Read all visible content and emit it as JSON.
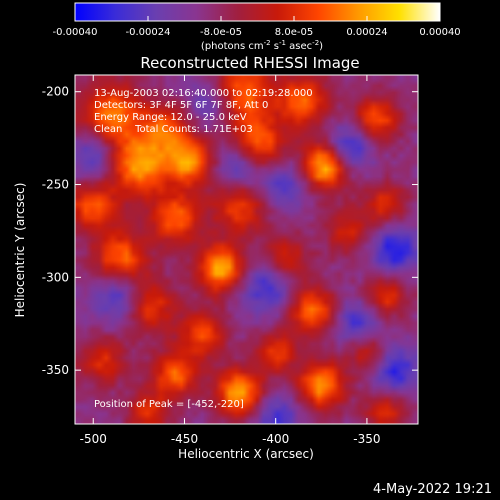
{
  "chart_data": {
    "type": "heatmap",
    "title": "Reconstructed RHESSI Image",
    "xlabel": "Heliocentric X (arcsec)",
    "ylabel": "Heliocentric Y (arcsec)",
    "xlim": [
      -510,
      -322
    ],
    "ylim": [
      -379,
      -191
    ],
    "x_ticks": [
      -500,
      -450,
      -400,
      -350
    ],
    "y_ticks": [
      -200,
      -250,
      -300,
      -350
    ],
    "colorbar": {
      "label_main": "(photons cm",
      "label_sup1": "-2",
      "label_mid1": " s",
      "label_sup2": "-1",
      "label_mid2": " asec",
      "label_sup3": "-2",
      "label_end": ")",
      "range": [
        -0.0004,
        0.0004
      ],
      "tick_labels": [
        "-0.00040",
        "-0.00024",
        "-8.0e-05",
        "8.0e-05",
        "0.00024",
        "0.00040"
      ],
      "colors": [
        "#0000ff",
        "#3a2cd8",
        "#6a3fb0",
        "#8a3590",
        "#a01f40",
        "#c81a0a",
        "#ff4500",
        "#ff9a00",
        "#ffe000",
        "#ffffff"
      ]
    },
    "annotations": [
      "13-Aug-2003 02:16:40.000 to 02:19:28.000",
      "Detectors: 3F 4F 5F 6F 7F 8F, Att 0",
      "Energy Range: 12.0 - 25.0 keV",
      "Clean    Total Counts: 1.71E+03"
    ],
    "peak_label": "Position of Peak = [-452,-220]",
    "peaks": [
      {
        "x": -420,
        "y": -200,
        "v": 0.00032,
        "s": 12
      },
      {
        "x": -385,
        "y": -205,
        "v": 0.00028,
        "s": 10
      },
      {
        "x": -410,
        "y": -228,
        "v": 0.0003,
        "s": 10
      },
      {
        "x": -490,
        "y": -212,
        "v": 0.0003,
        "s": 12
      },
      {
        "x": -460,
        "y": -220,
        "v": 0.00026,
        "s": 10
      },
      {
        "x": -475,
        "y": -240,
        "v": 0.00034,
        "s": 11
      },
      {
        "x": -447,
        "y": -238,
        "v": 0.00032,
        "s": 9
      },
      {
        "x": -373,
        "y": -240,
        "v": 0.0004,
        "s": 9
      },
      {
        "x": -345,
        "y": -215,
        "v": 0.00026,
        "s": 9
      },
      {
        "x": -340,
        "y": -260,
        "v": 0.0002,
        "s": 8
      },
      {
        "x": -500,
        "y": -262,
        "v": 0.00026,
        "s": 10
      },
      {
        "x": -455,
        "y": -268,
        "v": 0.00028,
        "s": 10
      },
      {
        "x": -420,
        "y": -262,
        "v": 0.00024,
        "s": 10
      },
      {
        "x": -360,
        "y": -275,
        "v": 0.00018,
        "s": 9
      },
      {
        "x": -485,
        "y": -290,
        "v": 0.0003,
        "s": 10
      },
      {
        "x": -430,
        "y": -295,
        "v": 0.00038,
        "s": 9
      },
      {
        "x": -395,
        "y": -290,
        "v": 0.0002,
        "s": 9
      },
      {
        "x": -340,
        "y": -310,
        "v": 0.00022,
        "s": 8
      },
      {
        "x": -470,
        "y": -315,
        "v": 0.00026,
        "s": 10
      },
      {
        "x": -440,
        "y": -330,
        "v": 0.00024,
        "s": 9
      },
      {
        "x": -380,
        "y": -318,
        "v": 0.0003,
        "s": 9
      },
      {
        "x": -350,
        "y": -340,
        "v": 0.0002,
        "s": 8
      },
      {
        "x": -495,
        "y": -345,
        "v": 0.0002,
        "s": 9
      },
      {
        "x": -455,
        "y": -352,
        "v": 0.00028,
        "s": 9
      },
      {
        "x": -420,
        "y": -362,
        "v": 0.00036,
        "s": 9
      },
      {
        "x": -375,
        "y": -358,
        "v": 0.00034,
        "s": 9
      },
      {
        "x": -400,
        "y": -340,
        "v": 0.00022,
        "s": 8
      },
      {
        "x": -470,
        "y": -372,
        "v": 0.0002,
        "s": 8
      },
      {
        "x": -340,
        "y": -372,
        "v": 0.0002,
        "s": 8
      },
      {
        "x": -435,
        "y": -205,
        "v": -0.0002,
        "s": 10
      },
      {
        "x": -360,
        "y": -230,
        "v": -0.00024,
        "s": 9
      },
      {
        "x": -420,
        "y": -240,
        "v": -0.0002,
        "s": 9
      },
      {
        "x": -500,
        "y": -235,
        "v": -0.00018,
        "s": 9
      },
      {
        "x": -485,
        "y": -310,
        "v": -0.00022,
        "s": 10
      },
      {
        "x": -405,
        "y": -305,
        "v": -0.0002,
        "s": 10
      },
      {
        "x": -335,
        "y": -285,
        "v": -0.00024,
        "s": 9
      },
      {
        "x": -355,
        "y": -325,
        "v": -0.0002,
        "s": 9
      },
      {
        "x": -400,
        "y": -375,
        "v": -0.00018,
        "s": 9
      },
      {
        "x": -335,
        "y": -350,
        "v": -0.00022,
        "s": 9
      },
      {
        "x": -395,
        "y": -250,
        "v": -0.00016,
        "s": 9
      }
    ]
  },
  "footer": {
    "date": "4-May-2022 19:21"
  }
}
